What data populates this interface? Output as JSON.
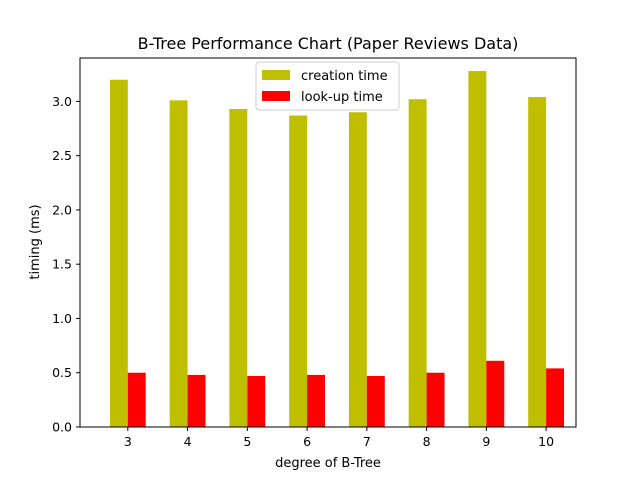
{
  "chart_data": {
    "type": "bar",
    "title": "B-Tree Performance Chart (Paper Reviews Data)",
    "xlabel": "degree of B-Tree",
    "ylabel": "timing (ms)",
    "categories": [
      "3",
      "4",
      "5",
      "6",
      "7",
      "8",
      "9",
      "10"
    ],
    "series": [
      {
        "name": "creation time",
        "color": "#bfbf00",
        "values": [
          3.2,
          3.01,
          2.93,
          2.87,
          2.9,
          3.02,
          3.28,
          3.04
        ]
      },
      {
        "name": "look-up time",
        "color": "#ff0000",
        "values": [
          0.5,
          0.48,
          0.47,
          0.48,
          0.47,
          0.5,
          0.61,
          0.54
        ]
      }
    ],
    "ylim": [
      0,
      3.4
    ],
    "yticks": [
      "0.0",
      "0.5",
      "1.0",
      "1.5",
      "2.0",
      "2.5",
      "3.0"
    ],
    "grid": false,
    "legend_position": "top-center"
  }
}
